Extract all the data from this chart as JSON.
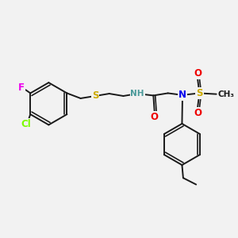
{
  "bg_color": "#f2f2f2",
  "bond_color": "#1a1a1a",
  "bond_width": 1.4,
  "atom_colors": {
    "F": "#ee00ee",
    "Cl": "#7cfc00",
    "S": "#ccaa00",
    "NH": "#4a9a9a",
    "N": "#0000ee",
    "O": "#ee0000",
    "C": "#1a1a1a"
  },
  "fs_main": 8.5,
  "fs_small": 7.5,
  "fs_tiny": 6.5
}
